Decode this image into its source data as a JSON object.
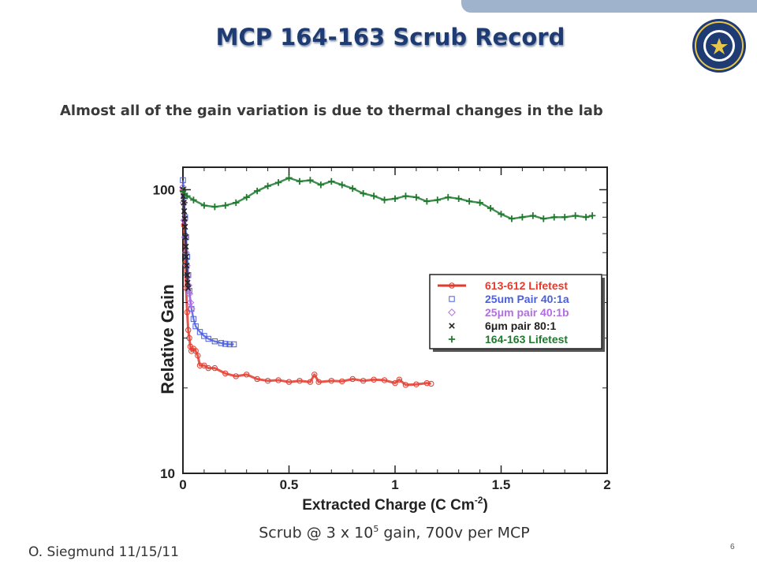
{
  "slide": {
    "title": "MCP 164-163 Scrub Record",
    "subtitle": "Almost all of the gain variation is due to thermal changes in the lab",
    "caption_pre": "Scrub @ 3 x 10",
    "caption_sup": "5",
    "caption_post": " gain, 700v per MCP",
    "author": "O. Siegmund  11/15/11",
    "page_number": "6",
    "logo": "university-seal-icon"
  },
  "colors": {
    "title": "#1f3b73",
    "topbar": "#9fb4cc",
    "red": "#e23b2e",
    "blue": "#4a5ee0",
    "purple": "#b06ee0",
    "black": "#222222",
    "green": "#1f7a2e"
  },
  "chart_data": {
    "type": "scatter",
    "title": "",
    "xlabel": "Extracted Charge (C Cm",
    "xlabel_sup": "-2",
    "xlabel_close": ")",
    "ylabel": "Relative Gain",
    "xlim": [
      0,
      2
    ],
    "ylim": [
      10,
      120
    ],
    "yscale": "log",
    "x_ticks": [
      {
        "value": 0,
        "label": "0"
      },
      {
        "value": 0.5,
        "label": "0.5"
      },
      {
        "value": 1,
        "label": "1"
      },
      {
        "value": 1.5,
        "label": "1.5"
      },
      {
        "value": 2,
        "label": "2"
      }
    ],
    "y_ticks": [
      {
        "value": 10,
        "label": "10"
      },
      {
        "value": 100,
        "label": "100"
      }
    ],
    "legend_position": "right-middle",
    "series": [
      {
        "name": "613-612 Lifetest",
        "color": "#e23b2e",
        "marker": "circle-line",
        "x": [
          0,
          0.005,
          0.01,
          0.015,
          0.02,
          0.025,
          0.03,
          0.035,
          0.04,
          0.05,
          0.06,
          0.07,
          0.08,
          0.1,
          0.12,
          0.15,
          0.2,
          0.25,
          0.3,
          0.35,
          0.4,
          0.45,
          0.5,
          0.55,
          0.6,
          0.62,
          0.64,
          0.7,
          0.75,
          0.8,
          0.85,
          0.9,
          0.95,
          1.0,
          1.02,
          1.05,
          1.1,
          1.15,
          1.17
        ],
        "y": [
          100,
          75,
          55,
          45,
          37,
          32,
          30,
          28,
          27,
          27.5,
          27,
          26,
          24,
          24,
          23.5,
          23.5,
          22.5,
          22,
          22.3,
          21.5,
          21.2,
          21.3,
          21.0,
          21.2,
          21.0,
          22.3,
          21.0,
          21.2,
          21.1,
          21.5,
          21.2,
          21.4,
          21.3,
          20.8,
          21.4,
          20.5,
          20.6,
          20.8,
          20.7
        ]
      },
      {
        "name": "25um Pair 40:1a",
        "color": "#4a5ee0",
        "marker": "square",
        "x": [
          0,
          0.005,
          0.01,
          0.015,
          0.02,
          0.025,
          0.03,
          0.04,
          0.05,
          0.06,
          0.08,
          0.1,
          0.12,
          0.15,
          0.18,
          0.2,
          0.22,
          0.24
        ],
        "y": [
          108,
          95,
          80,
          68,
          58,
          50,
          44,
          38,
          35,
          33,
          31.5,
          30.5,
          29.8,
          29.2,
          28.8,
          28.6,
          28.5,
          28.5
        ]
      },
      {
        "name": "25μm pair 40:1b",
        "color": "#b06ee0",
        "marker": "diamond",
        "x": [
          0,
          0.003,
          0.006,
          0.01,
          0.014,
          0.018,
          0.022,
          0.026,
          0.03,
          0.035,
          0.04
        ],
        "y": [
          102,
          90,
          78,
          68,
          60,
          54,
          50,
          46,
          43,
          40,
          38
        ]
      },
      {
        "name": "6μm pair 80:1",
        "color": "#222222",
        "marker": "x",
        "x": [
          0,
          0.002,
          0.004,
          0.006,
          0.008,
          0.01,
          0.012,
          0.014,
          0.016,
          0.018,
          0.02,
          0.022,
          0.025
        ],
        "y": [
          100,
          95,
          90,
          84,
          79,
          74,
          68,
          63,
          58,
          54,
          50,
          47,
          45
        ]
      },
      {
        "name": "164-163 Lifetest",
        "color": "#1f7a2e",
        "marker": "plus",
        "x": [
          0,
          0.02,
          0.05,
          0.1,
          0.15,
          0.2,
          0.25,
          0.3,
          0.35,
          0.4,
          0.45,
          0.5,
          0.55,
          0.6,
          0.65,
          0.7,
          0.75,
          0.8,
          0.85,
          0.9,
          0.95,
          1.0,
          1.05,
          1.1,
          1.15,
          1.2,
          1.25,
          1.3,
          1.35,
          1.4,
          1.45,
          1.5,
          1.55,
          1.6,
          1.65,
          1.7,
          1.75,
          1.8,
          1.85,
          1.9,
          1.93
        ],
        "y": [
          99,
          95,
          92,
          88,
          87,
          88,
          90,
          94,
          99,
          103,
          106,
          110,
          107,
          108,
          104,
          107,
          104,
          101,
          97,
          95,
          92,
          93,
          95,
          94,
          91,
          92,
          94,
          93,
          91,
          90,
          86,
          82,
          79,
          80,
          81,
          79,
          80,
          80,
          81,
          80,
          81
        ]
      }
    ]
  }
}
